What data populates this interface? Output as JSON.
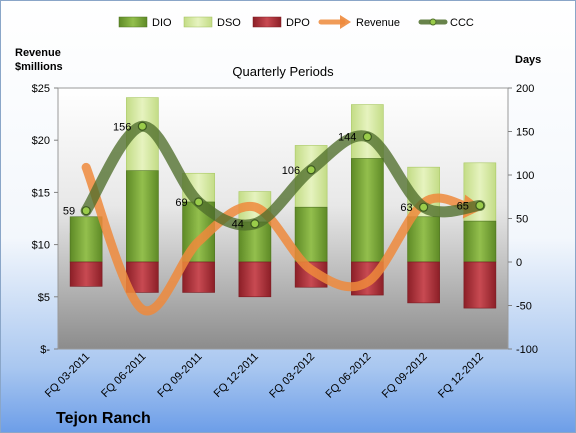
{
  "chart_data": {
    "type": "bar+line",
    "title": "Quarterly Periods",
    "company": "Tejon Ranch",
    "categories": [
      "FQ 03-2011",
      "FQ 06-2011",
      "FQ 09-2011",
      "FQ 12-2011",
      "FQ 03-2012",
      "FQ 06-2012",
      "FQ 09-2012",
      "FQ 12-2012"
    ],
    "left_axis": {
      "label_line1": "Revenue",
      "label_line2": "$millions",
      "min": 0,
      "max": 25,
      "step": 5,
      "tick_labels": [
        "$-",
        "$5",
        "$10",
        "$15",
        "$20",
        "$25"
      ]
    },
    "right_axis": {
      "label": "Days",
      "min": -100,
      "max": 200,
      "step": 50,
      "tick_labels": [
        "-100",
        "-50",
        "0",
        "50",
        "100",
        "150",
        "200"
      ]
    },
    "legend": [
      "DIO",
      "DSO",
      "DPO",
      "Revenue",
      "CCC"
    ],
    "legend_position": "top",
    "series": [
      {
        "name": "DIO",
        "axis": "right",
        "values": [
          52,
          105,
          69,
          46,
          63,
          119,
          52,
          47
        ]
      },
      {
        "name": "DSO",
        "axis": "right",
        "values": [
          33,
          189,
          102,
          81,
          134,
          181,
          109,
          114
        ]
      },
      {
        "name": "DPO",
        "axis": "right",
        "values": [
          -28,
          -35,
          -35,
          -40,
          -29,
          -38,
          -47,
          -53
        ]
      },
      {
        "name": "Revenue",
        "axis": "left",
        "values": [
          17.4,
          3.8,
          10.3,
          13.6,
          7.6,
          6.4,
          14.0,
          13.5
        ]
      },
      {
        "name": "CCC",
        "axis": "right",
        "values": [
          59,
          156,
          69,
          44,
          106,
          144,
          63,
          65
        ],
        "data_labels": [
          "59",
          "156",
          "69",
          "44",
          "106",
          "144",
          "63",
          "65"
        ]
      }
    ],
    "colors": {
      "DIO": "#7aa33a",
      "DSO": "#d6eaa4",
      "DPO": "#b1363d",
      "Revenue": "#ee8a3c",
      "CCC": "#4f6e2c"
    }
  }
}
